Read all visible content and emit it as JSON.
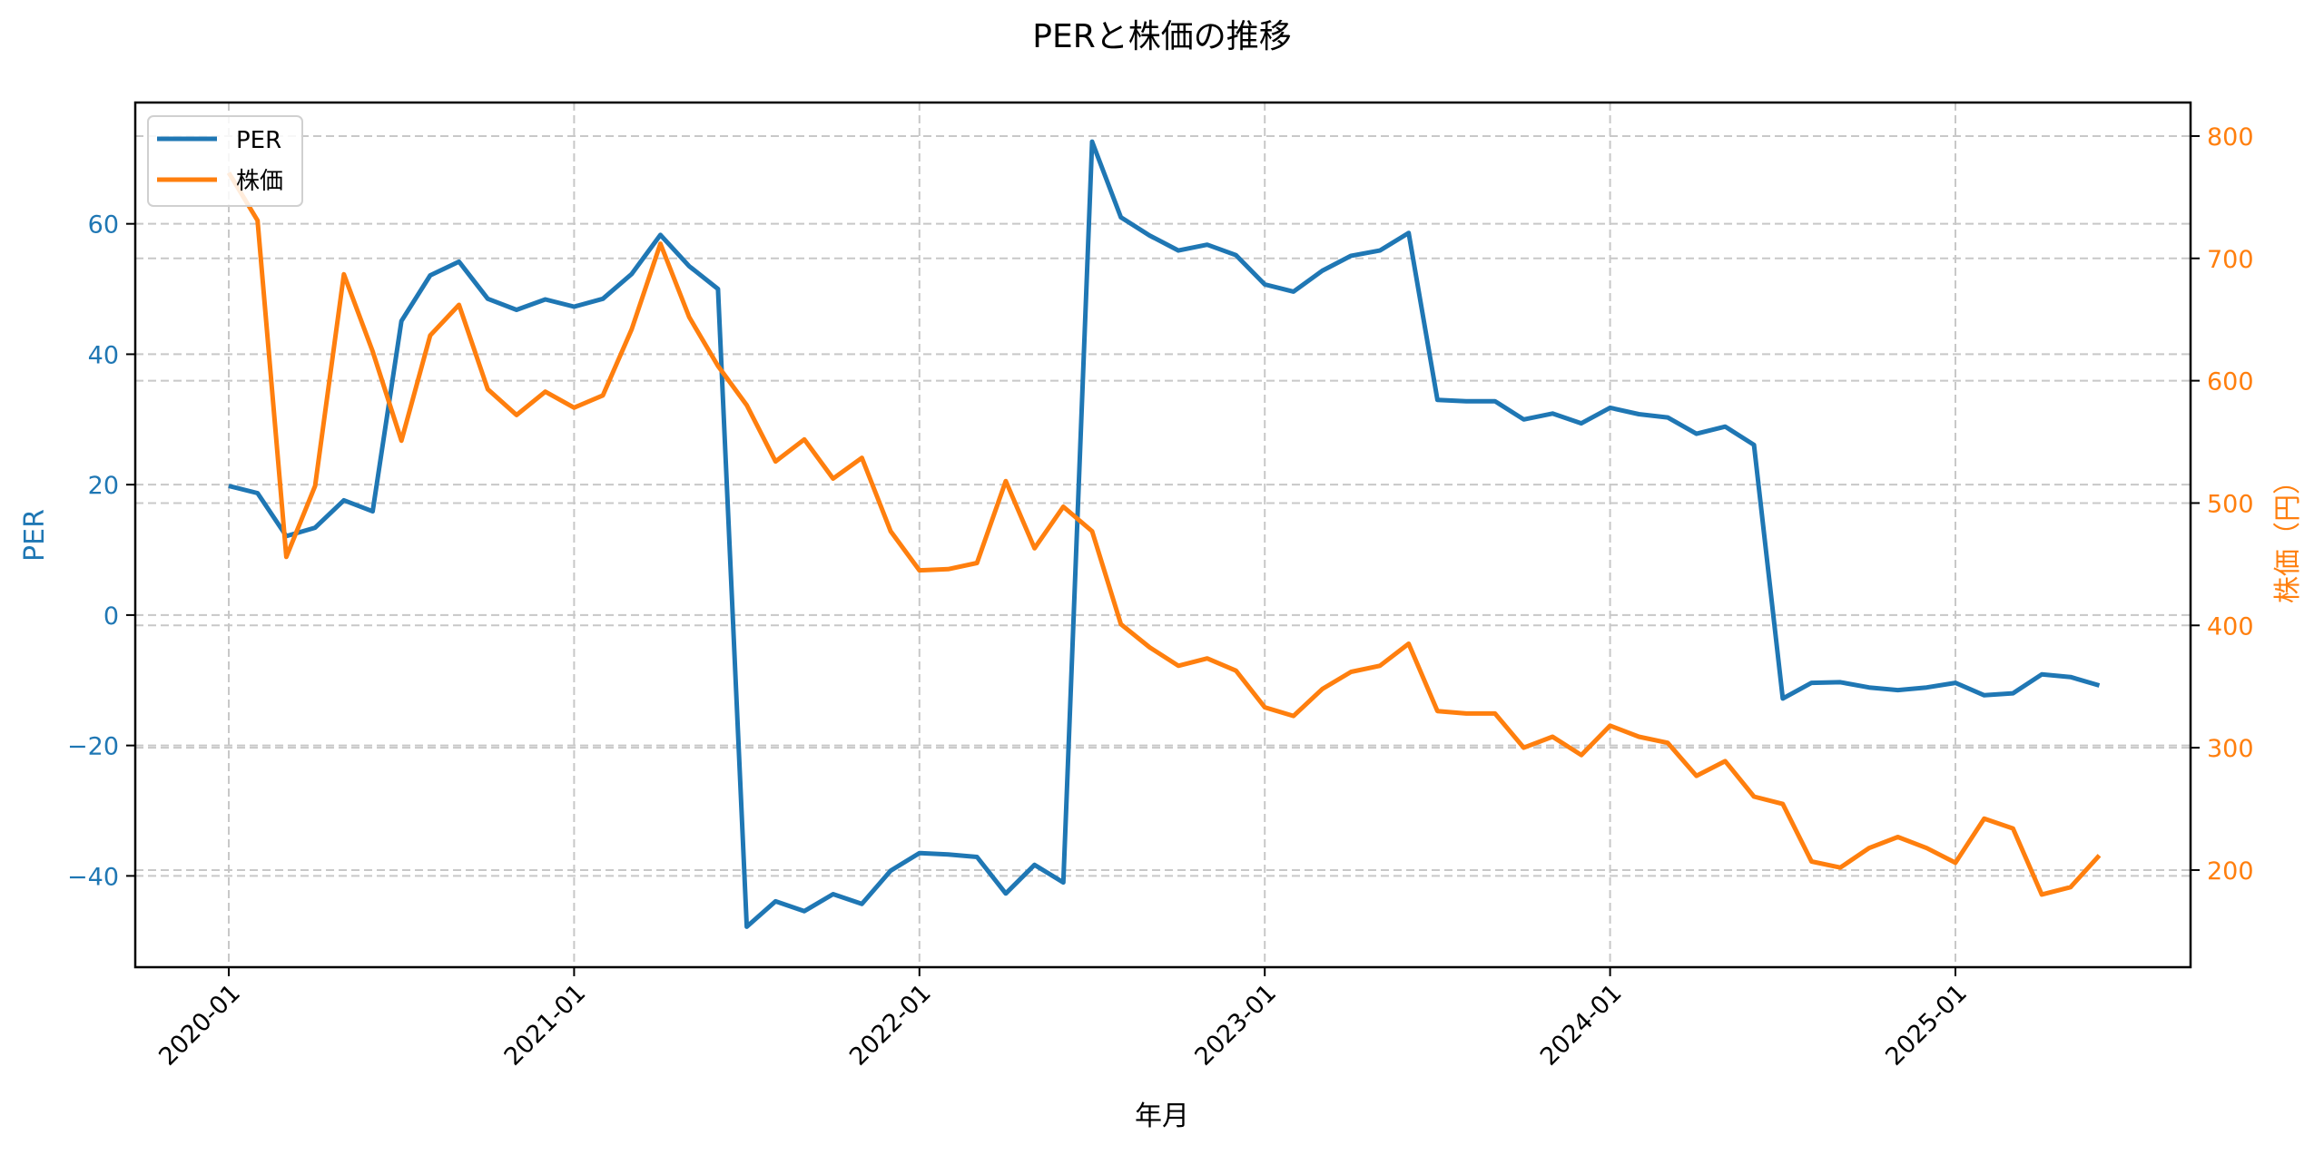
{
  "chart_data": {
    "type": "line",
    "title": "PERと株価の推移",
    "xlabel": "年月",
    "ylabel": "PER",
    "ylabel_right": "株価（円）",
    "grid": true,
    "legend_position": "upper left",
    "x": [
      "2020-01",
      "2020-02",
      "2020-03",
      "2020-04",
      "2020-05",
      "2020-06",
      "2020-07",
      "2020-08",
      "2020-09",
      "2020-10",
      "2020-11",
      "2020-12",
      "2021-01",
      "2021-02",
      "2021-03",
      "2021-04",
      "2021-05",
      "2021-06",
      "2021-07",
      "2021-08",
      "2021-09",
      "2021-10",
      "2021-11",
      "2021-12",
      "2022-01",
      "2022-02",
      "2022-03",
      "2022-04",
      "2022-05",
      "2022-06",
      "2022-07",
      "2022-08",
      "2022-09",
      "2022-10",
      "2022-11",
      "2022-12",
      "2023-01",
      "2023-02",
      "2023-03",
      "2023-04",
      "2023-05",
      "2023-06",
      "2023-07",
      "2023-08",
      "2023-09",
      "2023-10",
      "2023-11",
      "2023-12",
      "2024-01",
      "2024-02",
      "2024-03",
      "2024-04",
      "2024-05",
      "2024-06",
      "2024-07",
      "2024-08",
      "2024-09",
      "2024-10",
      "2024-11",
      "2024-12",
      "2025-01",
      "2025-02",
      "2025-03",
      "2025-04",
      "2025-05",
      "2025-06"
    ],
    "x_ticks": [
      "2020-01",
      "2021-01",
      "2022-01",
      "2023-01",
      "2024-01",
      "2025-01"
    ],
    "x_tick_positions": [
      0,
      12,
      24,
      36,
      48,
      60
    ],
    "series": [
      {
        "name": "PER",
        "axis": "left",
        "color": "#1f77b4",
        "values": [
          19.8,
          18.7,
          12.1,
          13.4,
          17.6,
          15.9,
          45.1,
          52.1,
          54.2,
          48.5,
          46.8,
          48.4,
          47.3,
          48.5,
          52.3,
          58.3,
          53.5,
          50.0,
          -47.8,
          -43.9,
          -45.4,
          -42.8,
          -44.3,
          -39.2,
          -36.5,
          -36.7,
          -37.1,
          -42.7,
          -38.3,
          -41.0,
          72.6,
          61.0,
          58.2,
          55.9,
          56.8,
          55.2,
          50.7,
          49.6,
          52.8,
          55.1,
          55.9,
          58.6,
          33.0,
          32.8,
          32.8,
          30.0,
          30.9,
          29.4,
          31.8,
          30.8,
          30.3,
          27.8,
          28.9,
          26.1,
          -12.8,
          -10.4,
          -10.3,
          -11.1,
          -11.5,
          -11.1,
          -10.4,
          -12.3,
          -12.0,
          -9.1,
          -9.5,
          -10.8
        ]
      },
      {
        "name": "株価",
        "axis": "right",
        "color": "#ff7f0e",
        "values": [
          770,
          731,
          456,
          514,
          687,
          624,
          551,
          637,
          662,
          593,
          572,
          591,
          578,
          588,
          642,
          712,
          652,
          612,
          580,
          534,
          552,
          520,
          537,
          477,
          445,
          446,
          451,
          518,
          463,
          497,
          477,
          401,
          382,
          367,
          373,
          363,
          333,
          326,
          348,
          362,
          367,
          385,
          330,
          328,
          328,
          300,
          309,
          294,
          318,
          309,
          304,
          277,
          289,
          260,
          254,
          207,
          202,
          218,
          227,
          218,
          206,
          242,
          234,
          180,
          186,
          212
        ]
      }
    ],
    "ylim": [
      -54.0,
      78.6
    ],
    "ylim_right": [
      120.6,
      827.4
    ],
    "yticks_left": [
      -40,
      -20,
      0,
      20,
      40,
      60
    ],
    "yticks_right": [
      200,
      300,
      400,
      500,
      600,
      700,
      800
    ],
    "ytick_labels_left": [
      "−40",
      "−20",
      "0",
      "20",
      "40",
      "60"
    ],
    "ytick_labels_right": [
      "200",
      "300",
      "400",
      "500",
      "600",
      "700",
      "800"
    ]
  },
  "colors": {
    "per": "#1f77b4",
    "price": "#ff7f0e",
    "grid": "#c8c8c8",
    "axis": "#000000"
  },
  "legend": {
    "items": [
      {
        "label": "PER",
        "color": "#1f77b4"
      },
      {
        "label": "株価",
        "color": "#ff7f0e"
      }
    ]
  }
}
